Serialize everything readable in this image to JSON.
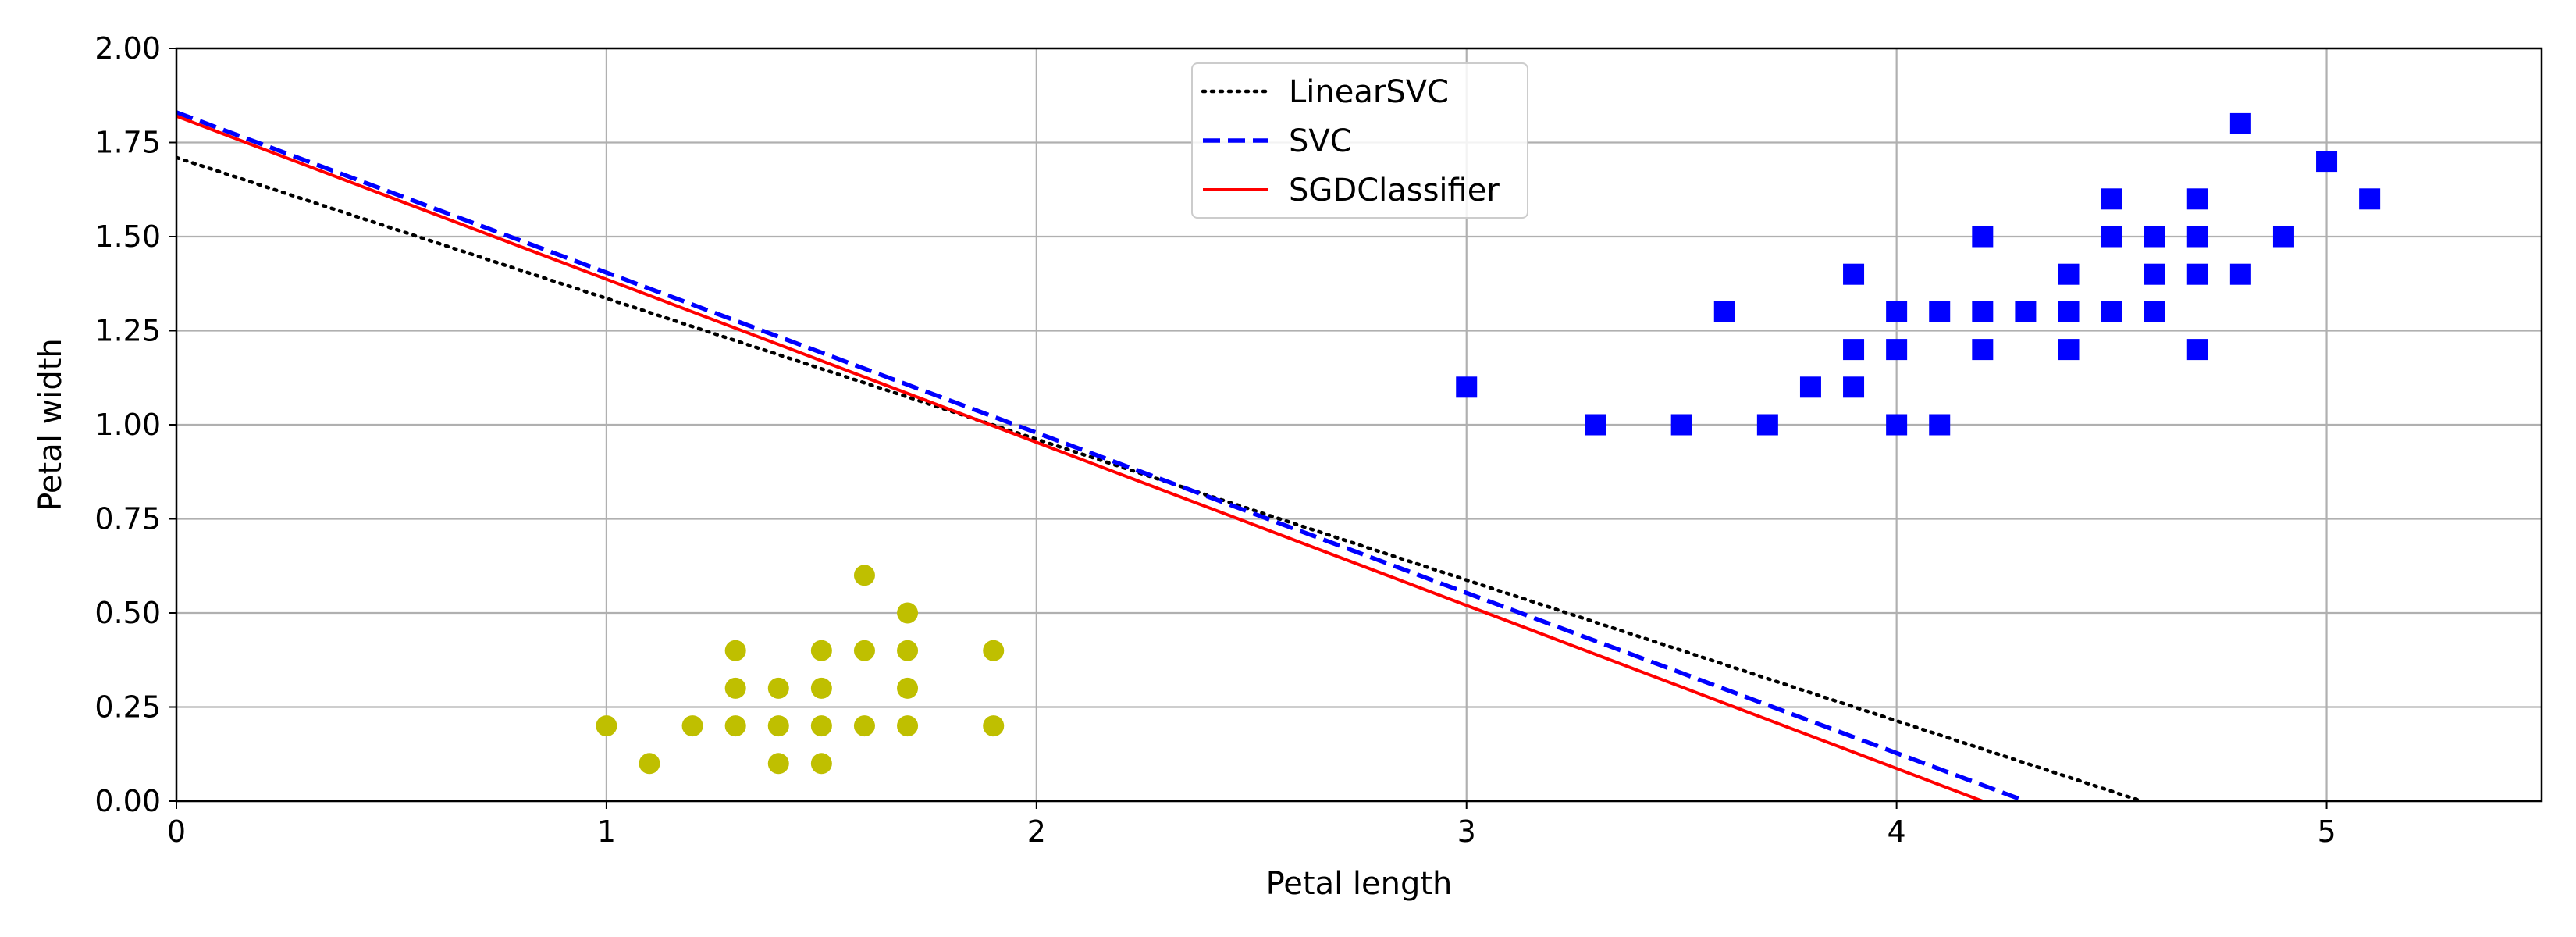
{
  "chart_data": {
    "type": "scatter",
    "title": "",
    "xlabel": "Petal length",
    "ylabel": "Petal width",
    "xlim": [
      0,
      5.5
    ],
    "ylim": [
      0,
      2.0
    ],
    "grid": true,
    "legend_position": "top-center",
    "xticks": [
      0,
      1,
      2,
      3,
      4,
      5
    ],
    "xtick_labels": [
      "0",
      "1",
      "2",
      "3",
      "4",
      "5"
    ],
    "yticks": [
      0,
      0.25,
      0.5,
      0.75,
      1.0,
      1.25,
      1.5,
      1.75,
      2.0
    ],
    "ytick_labels": [
      "0.00",
      "0.25",
      "0.50",
      "0.75",
      "1.00",
      "1.25",
      "1.50",
      "1.75",
      "2.00"
    ],
    "lines": [
      {
        "name": "LinearSVC",
        "style": "dotted",
        "color": "#000000",
        "x": [
          0,
          4.57
        ],
        "y": [
          1.71,
          0
        ]
      },
      {
        "name": "SVC",
        "style": "dashed",
        "color": "#0000ff",
        "x": [
          0,
          4.3
        ],
        "y": [
          1.83,
          0
        ]
      },
      {
        "name": "SGDClassifier",
        "style": "solid",
        "color": "#ff0000",
        "x": [
          0,
          4.2
        ],
        "y": [
          1.82,
          0
        ]
      }
    ],
    "scatter_series": [
      {
        "marker": "circle",
        "color": "#bfbf00",
        "points": [
          [
            1.0,
            0.2
          ],
          [
            1.1,
            0.1
          ],
          [
            1.2,
            0.2
          ],
          [
            1.3,
            0.4
          ],
          [
            1.3,
            0.3
          ],
          [
            1.3,
            0.2
          ],
          [
            1.4,
            0.3
          ],
          [
            1.4,
            0.2
          ],
          [
            1.4,
            0.1
          ],
          [
            1.5,
            0.4
          ],
          [
            1.5,
            0.3
          ],
          [
            1.5,
            0.2
          ],
          [
            1.5,
            0.1
          ],
          [
            1.6,
            0.6
          ],
          [
            1.6,
            0.4
          ],
          [
            1.6,
            0.2
          ],
          [
            1.7,
            0.5
          ],
          [
            1.7,
            0.4
          ],
          [
            1.7,
            0.3
          ],
          [
            1.7,
            0.2
          ],
          [
            1.9,
            0.4
          ],
          [
            1.9,
            0.2
          ]
        ]
      },
      {
        "marker": "square",
        "color": "#0000ff",
        "points": [
          [
            3.0,
            1.1
          ],
          [
            3.3,
            1.0
          ],
          [
            3.5,
            1.0
          ],
          [
            3.6,
            1.3
          ],
          [
            3.7,
            1.0
          ],
          [
            3.8,
            1.1
          ],
          [
            3.9,
            1.4
          ],
          [
            3.9,
            1.2
          ],
          [
            3.9,
            1.1
          ],
          [
            4.0,
            1.3
          ],
          [
            4.0,
            1.2
          ],
          [
            4.0,
            1.0
          ],
          [
            4.1,
            1.3
          ],
          [
            4.1,
            1.0
          ],
          [
            4.2,
            1.5
          ],
          [
            4.2,
            1.3
          ],
          [
            4.2,
            1.2
          ],
          [
            4.3,
            1.3
          ],
          [
            4.4,
            1.4
          ],
          [
            4.4,
            1.3
          ],
          [
            4.4,
            1.2
          ],
          [
            4.5,
            1.6
          ],
          [
            4.5,
            1.5
          ],
          [
            4.5,
            1.3
          ],
          [
            4.6,
            1.5
          ],
          [
            4.6,
            1.4
          ],
          [
            4.6,
            1.3
          ],
          [
            4.7,
            1.6
          ],
          [
            4.7,
            1.5
          ],
          [
            4.7,
            1.4
          ],
          [
            4.7,
            1.2
          ],
          [
            4.8,
            1.8
          ],
          [
            4.8,
            1.4
          ],
          [
            4.9,
            1.5
          ],
          [
            5.0,
            1.7
          ],
          [
            5.1,
            1.6
          ]
        ]
      }
    ]
  }
}
